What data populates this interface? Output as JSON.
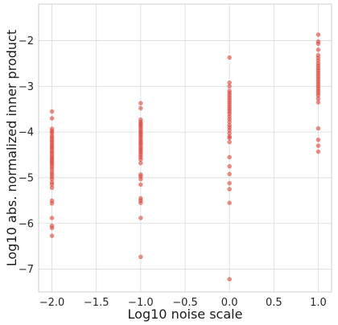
{
  "chart_data": {
    "type": "scatter",
    "xlabel": "Log10 noise scale",
    "ylabel": "Log10 abs. normalized inner product",
    "xlim": [
      -2.15,
      1.15
    ],
    "ylim": [
      -7.5,
      -1.2
    ],
    "xticks": [
      -2.0,
      -1.5,
      -1.0,
      -0.5,
      0.0,
      0.5,
      1.0
    ],
    "xtick_labels": [
      "−2.0",
      "−1.5",
      "−1.0",
      "−0.5",
      "0.0",
      "0.5",
      "1.0"
    ],
    "yticks": [
      -2,
      -3,
      -4,
      -5,
      -6,
      -7
    ],
    "ytick_labels": [
      "−2",
      "−3",
      "−4",
      "−5",
      "−6",
      "−7"
    ],
    "grid": true,
    "color": "#e0453a",
    "series": [
      {
        "x": -2.0,
        "y": [
          -3.55,
          -3.7,
          -3.93,
          -3.98,
          -4.02,
          -4.08,
          -4.12,
          -4.17,
          -4.21,
          -4.26,
          -4.3,
          -4.34,
          -4.38,
          -4.43,
          -4.47,
          -4.52,
          -4.56,
          -4.6,
          -4.64,
          -4.68,
          -4.72,
          -4.77,
          -4.82,
          -4.88,
          -4.93,
          -4.98,
          -5.03,
          -5.1,
          -5.15,
          -5.22,
          -5.5,
          -5.56,
          -5.88,
          -6.05,
          -6.1,
          -6.27
        ]
      },
      {
        "x": -1.0,
        "y": [
          -3.37,
          -3.48,
          -3.73,
          -3.78,
          -3.82,
          -3.86,
          -3.9,
          -3.95,
          -3.99,
          -4.03,
          -4.07,
          -4.11,
          -4.16,
          -4.2,
          -4.24,
          -4.28,
          -4.33,
          -4.37,
          -4.41,
          -4.45,
          -4.5,
          -4.55,
          -4.6,
          -4.68,
          -4.93,
          -4.97,
          -5.03,
          -5.15,
          -5.45,
          -5.5,
          -5.55,
          -5.88,
          -6.73
        ]
      },
      {
        "x": 0.0,
        "y": [
          -2.37,
          -2.92,
          -3.0,
          -3.1,
          -3.15,
          -3.2,
          -3.25,
          -3.3,
          -3.35,
          -3.4,
          -3.45,
          -3.5,
          -3.55,
          -3.6,
          -3.66,
          -3.72,
          -3.78,
          -3.85,
          -3.9,
          -3.96,
          -4.03,
          -4.1,
          -4.13,
          -4.22,
          -4.55,
          -4.75,
          -4.92,
          -5.12,
          -5.25,
          -5.55,
          -7.22
        ]
      },
      {
        "x": 1.0,
        "y": [
          -1.87,
          -2.02,
          -2.07,
          -2.2,
          -2.32,
          -2.38,
          -2.44,
          -2.5,
          -2.55,
          -2.6,
          -2.65,
          -2.7,
          -2.75,
          -2.8,
          -2.85,
          -2.9,
          -2.95,
          -3.0,
          -3.05,
          -3.1,
          -3.15,
          -3.2,
          -3.27,
          -3.35,
          -3.92,
          -4.17,
          -4.3,
          -4.43
        ]
      }
    ]
  }
}
